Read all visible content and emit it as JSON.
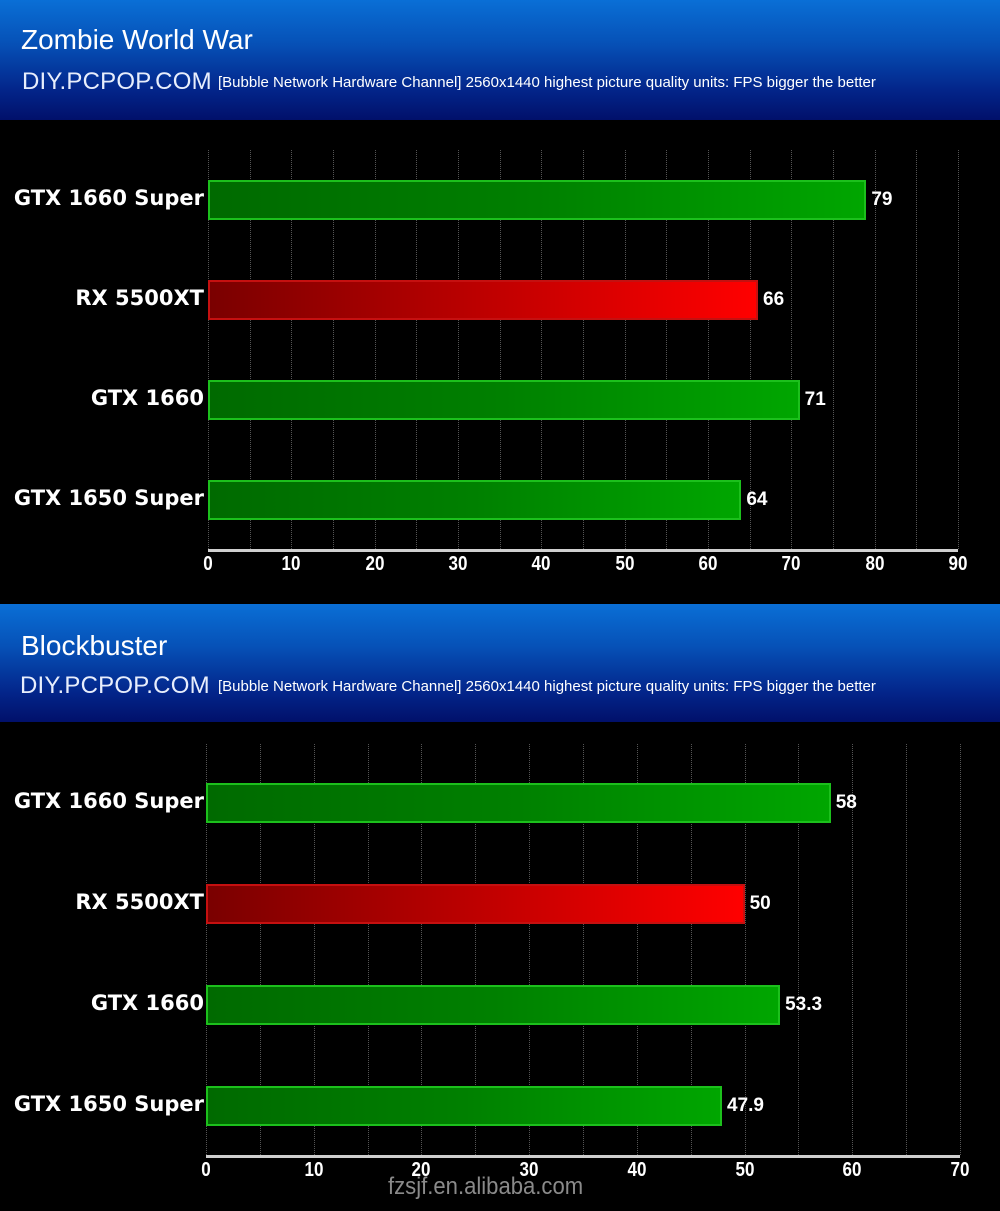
{
  "charts": [
    {
      "title": "Zombie World War",
      "site": "DIY.PCPOP.COM",
      "description": "[Bubble Network Hardware Channel] 2560x1440 highest picture quality units: FPS bigger the better",
      "x_ticks": [
        "0",
        "10",
        "20",
        "30",
        "40",
        "50",
        "60",
        "70",
        "80",
        "90"
      ],
      "bars": [
        {
          "label": "GTX 1660 Super",
          "value": 79,
          "value_label": "79",
          "color": "green"
        },
        {
          "label": "RX 5500XT",
          "value": 66,
          "value_label": "66",
          "color": "red"
        },
        {
          "label": "GTX 1660",
          "value": 71,
          "value_label": "71",
          "color": "green"
        },
        {
          "label": "GTX 1650 Super",
          "value": 64,
          "value_label": "64",
          "color": "green"
        }
      ]
    },
    {
      "title": "Blockbuster",
      "site": "DIY.PCPOP.COM",
      "description": "[Bubble Network Hardware Channel] 2560x1440 highest picture quality units: FPS bigger the better",
      "x_ticks": [
        "0",
        "10",
        "20",
        "30",
        "40",
        "50",
        "60",
        "70"
      ],
      "bars": [
        {
          "label": "GTX 1660 Super",
          "value": 58,
          "value_label": "58",
          "color": "green"
        },
        {
          "label": "RX 5500XT",
          "value": 50,
          "value_label": "50",
          "color": "red"
        },
        {
          "label": "GTX 1660",
          "value": 53.3,
          "value_label": "53.3",
          "color": "green"
        },
        {
          "label": "GTX 1650 Super",
          "value": 47.9,
          "value_label": "47.9",
          "color": "green"
        }
      ]
    }
  ],
  "watermark": "fzsjf.en.alibaba.com",
  "colors": {
    "nvidia_bar": "#00a000",
    "amd_bar": "#ff0000",
    "header_top": "#0a6fd6",
    "header_bottom": "#01106a",
    "background": "#000000"
  },
  "chart_data": [
    {
      "type": "bar",
      "orientation": "horizontal",
      "title": "Zombie World War",
      "subtitle": "[Bubble Network Hardware Channel] 2560x1440 highest picture quality units: FPS bigger the better",
      "categories": [
        "GTX 1660 Super",
        "RX 5500XT",
        "GTX 1660",
        "GTX 1650 Super"
      ],
      "values": [
        79,
        66,
        71,
        64
      ],
      "xlabel": "",
      "ylabel": "",
      "xlim": [
        0,
        90
      ],
      "x_ticks": [
        0,
        10,
        20,
        30,
        40,
        50,
        60,
        70,
        80,
        90
      ],
      "grid": true,
      "legend": null,
      "bar_colors": [
        "green",
        "red",
        "green",
        "green"
      ]
    },
    {
      "type": "bar",
      "orientation": "horizontal",
      "title": "Blockbuster",
      "subtitle": "[Bubble Network Hardware Channel] 2560x1440 highest picture quality units: FPS bigger the better",
      "categories": [
        "GTX 1660 Super",
        "RX 5500XT",
        "GTX 1660",
        "GTX 1650 Super"
      ],
      "values": [
        58,
        50,
        53.3,
        47.9
      ],
      "xlabel": "",
      "ylabel": "",
      "xlim": [
        0,
        70
      ],
      "x_ticks": [
        0,
        10,
        20,
        30,
        40,
        50,
        60,
        70
      ],
      "grid": true,
      "legend": null,
      "bar_colors": [
        "green",
        "red",
        "green",
        "green"
      ]
    }
  ]
}
